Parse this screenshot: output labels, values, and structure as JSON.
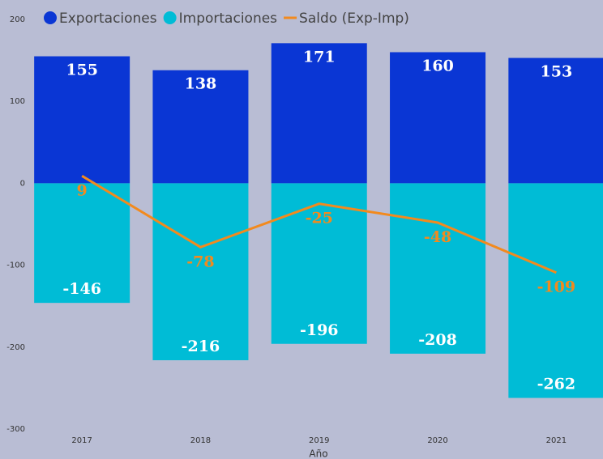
{
  "chart_data": {
    "type": "bar",
    "x_label": "Año",
    "categories": [
      "2017",
      "2018",
      "2019",
      "2020",
      "2021"
    ],
    "series": [
      {
        "name": "Exportaciones",
        "color": "#0a36d4",
        "values": [
          155,
          138,
          171,
          160,
          153
        ]
      },
      {
        "name": "Importaciones",
        "color": "#00bcd6",
        "values": [
          -146,
          -216,
          -196,
          -208,
          -262
        ]
      },
      {
        "name": "Saldo (Exp-Imp)",
        "color": "#f28a1e",
        "type": "line",
        "values": [
          9,
          -78,
          -25,
          -48,
          -109
        ]
      }
    ],
    "ylim": [
      -300,
      200
    ],
    "yticks": [
      -300,
      -200,
      -100,
      0,
      100,
      200
    ],
    "legend": "top-left"
  }
}
